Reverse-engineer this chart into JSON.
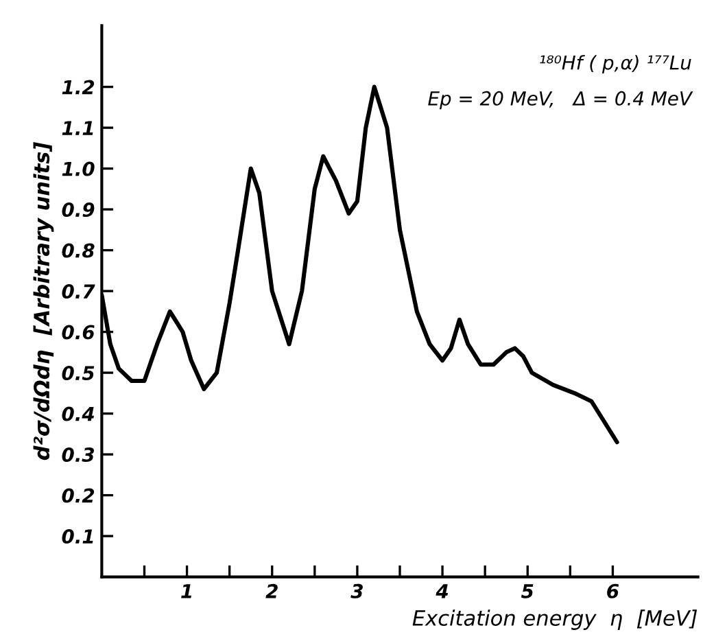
{
  "chart_data": {
    "type": "line",
    "xlabel": "Excitation energy  η  [MeV]",
    "ylabel": "d²σ/dΩdη  [Arbitrary units]",
    "annotations": [
      "¹⁸⁰Hf ( p,α) ¹⁷⁷Lu",
      "Ep = 20 MeV,   Δ = 0.4 MeV"
    ],
    "series": [
      {
        "color": "#000000",
        "x": [
          0,
          0.1,
          0.2,
          0.35,
          0.5,
          0.65,
          0.8,
          0.95,
          1.05,
          1.2,
          1.35,
          1.5,
          1.6,
          1.75,
          1.85,
          2.0,
          2.2,
          2.35,
          2.5,
          2.6,
          2.75,
          2.9,
          3.0,
          3.1,
          3.2,
          3.35,
          3.5,
          3.7,
          3.85,
          4.0,
          4.1,
          4.2,
          4.3,
          4.45,
          4.6,
          4.75,
          4.85,
          4.95,
          5.05,
          5.3,
          5.55,
          5.75,
          5.9,
          6.05
        ],
        "values": [
          0.69,
          0.57,
          0.51,
          0.48,
          0.48,
          0.57,
          0.65,
          0.6,
          0.53,
          0.46,
          0.5,
          0.67,
          0.8,
          1.0,
          0.94,
          0.7,
          0.57,
          0.7,
          0.95,
          1.03,
          0.97,
          0.89,
          0.92,
          1.1,
          1.2,
          1.1,
          0.85,
          0.65,
          0.57,
          0.53,
          0.56,
          0.63,
          0.57,
          0.52,
          0.52,
          0.55,
          0.56,
          0.54,
          0.5,
          0.47,
          0.45,
          0.43,
          0.38,
          0.33
        ]
      }
    ],
    "xlim": [
      0,
      7
    ],
    "ylim": [
      0,
      1.35
    ],
    "xticks": [
      {
        "value": 0.5,
        "label": null
      },
      1,
      {
        "value": 1.5,
        "label": null
      },
      2,
      {
        "value": 2.5,
        "label": null
      },
      3,
      {
        "value": 3.5,
        "label": null
      },
      4,
      {
        "value": 4.5,
        "label": null
      },
      5,
      {
        "value": 5.5,
        "label": null
      },
      6
    ],
    "yticks": [
      0.1,
      0.2,
      0.3,
      0.4,
      0.5,
      0.6,
      0.7,
      0.8,
      0.9,
      {
        "value": 1.0,
        "label": "1.0"
      },
      1.1,
      1.2
    ],
    "grid": false,
    "legend": false,
    "marker": "none",
    "line_style": "solid"
  }
}
